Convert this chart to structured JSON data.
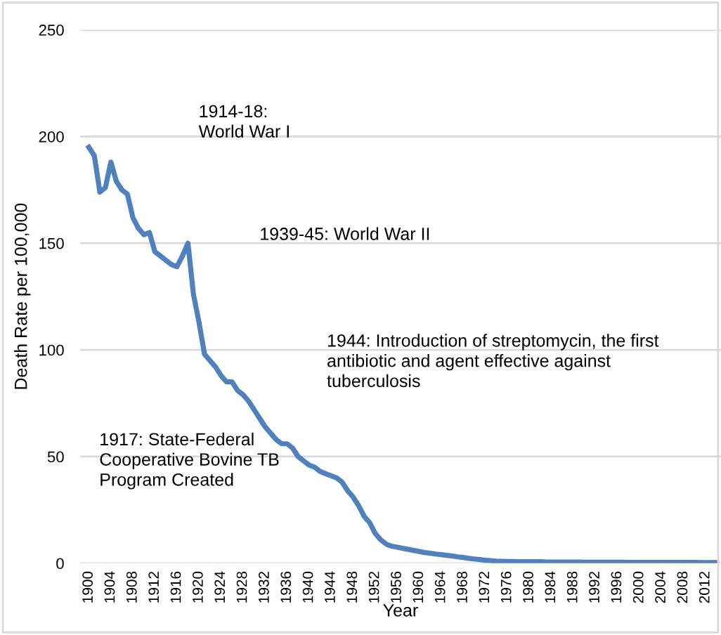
{
  "chart_data": {
    "type": "line",
    "xlabel": "Year",
    "ylabel": "Death Rate per 100,000",
    "categories": [
      "1900",
      null,
      null,
      null,
      "1904",
      null,
      null,
      null,
      "1908",
      null,
      null,
      null,
      "1912",
      null,
      null,
      null,
      "1916",
      null,
      null,
      null,
      "1920",
      null,
      null,
      null,
      "1924",
      null,
      null,
      null,
      "1928",
      null,
      null,
      null,
      "1932",
      null,
      null,
      null,
      "1936",
      null,
      null,
      null,
      "1940",
      null,
      null,
      null,
      "1944",
      null,
      null,
      null,
      "1948",
      null,
      null,
      null,
      "1952",
      null,
      null,
      null,
      "1956",
      null,
      null,
      null,
      "1960",
      null,
      null,
      null,
      "1964",
      null,
      null,
      null,
      "1968",
      null,
      null,
      null,
      "1972",
      null,
      null,
      null,
      "1976",
      null,
      null,
      null,
      "1980",
      null,
      null,
      null,
      "1984",
      null,
      null,
      null,
      "1988",
      null,
      null,
      null,
      "1992",
      null,
      null,
      null,
      "1996",
      null,
      null,
      null,
      "2000",
      null,
      null,
      null,
      "2004",
      null,
      null,
      null,
      "2008",
      null,
      null,
      null,
      "2012",
      null,
      null
    ],
    "series": [
      {
        "color": "#4f81bd",
        "values": [
          195,
          191,
          174,
          176,
          188,
          179,
          175,
          173,
          162,
          157,
          154,
          155,
          146,
          144,
          142,
          140,
          139,
          144,
          150,
          126,
          113,
          98,
          95,
          92,
          88,
          85,
          85,
          81,
          79,
          76,
          72,
          68,
          64,
          61,
          58,
          56,
          56,
          54,
          50,
          48,
          46,
          45,
          43,
          42,
          41,
          40,
          38,
          34,
          31,
          27,
          22,
          19,
          14,
          11,
          9,
          8,
          7.5,
          7,
          6.5,
          6,
          5.5,
          5,
          4.7,
          4.3,
          4,
          3.7,
          3.4,
          3,
          2.7,
          2.3,
          2,
          1.7,
          1.4,
          1.2,
          1,
          0.9,
          0.8,
          0.8,
          0.7,
          0.7,
          0.7,
          0.7,
          0.7,
          0.6,
          0.6,
          0.6,
          0.6,
          0.6,
          0.6,
          0.6,
          0.5,
          0.5,
          0.5,
          0.5,
          0.5,
          0.5,
          0.5,
          0.5,
          0.4,
          0.4,
          0.4,
          0.4,
          0.4,
          0.4,
          0.4,
          0.4,
          0.4,
          0.4,
          0.4,
          0.4,
          0.4,
          0.3,
          0.3,
          0.3,
          0.3
        ]
      }
    ],
    "ylim": [
      0,
      250
    ],
    "yticks": [
      0,
      50,
      100,
      150,
      200,
      250
    ],
    "grid": "y",
    "legend": false,
    "marker": "none",
    "line_style": "solid",
    "annotations": [
      "1914-18:\nWorld War I",
      "1939-45: World War II",
      "1944: Introduction of streptomycin, the first\nantibiotic and agent effective against\ntuberculosis",
      "1917: State-Federal\nCooperative Bovine TB\nProgram Created"
    ]
  }
}
